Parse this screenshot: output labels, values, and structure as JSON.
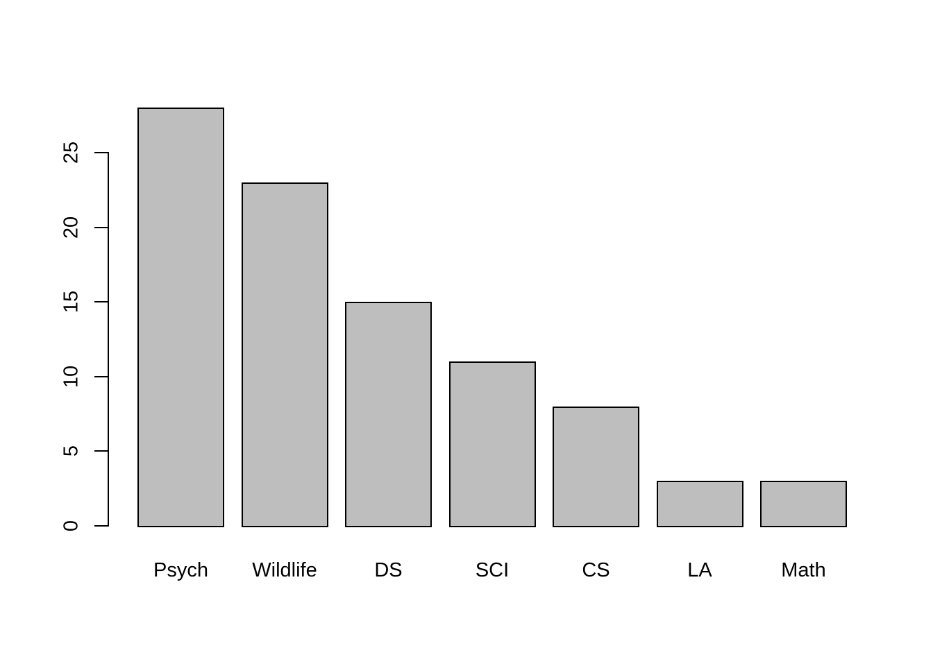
{
  "chart_data": {
    "type": "bar",
    "categories": [
      "Psych",
      "Wildlife",
      "DS",
      "SCI",
      "CS",
      "LA",
      "Math"
    ],
    "values": [
      28,
      23,
      15,
      11,
      8,
      3,
      3
    ],
    "title": "",
    "xlabel": "",
    "ylabel": "",
    "ylim": [
      0,
      28
    ],
    "yticks": [
      0,
      5,
      10,
      15,
      20,
      25
    ],
    "ytick_labels": [
      "0",
      "5",
      "10",
      "15",
      "20",
      "25"
    ],
    "grid": false,
    "legend": false,
    "bar_fill_color": "#BEBEBE",
    "bar_border_color": "#000000",
    "axis_color": "#000000",
    "background_color": "#FFFFFF"
  }
}
